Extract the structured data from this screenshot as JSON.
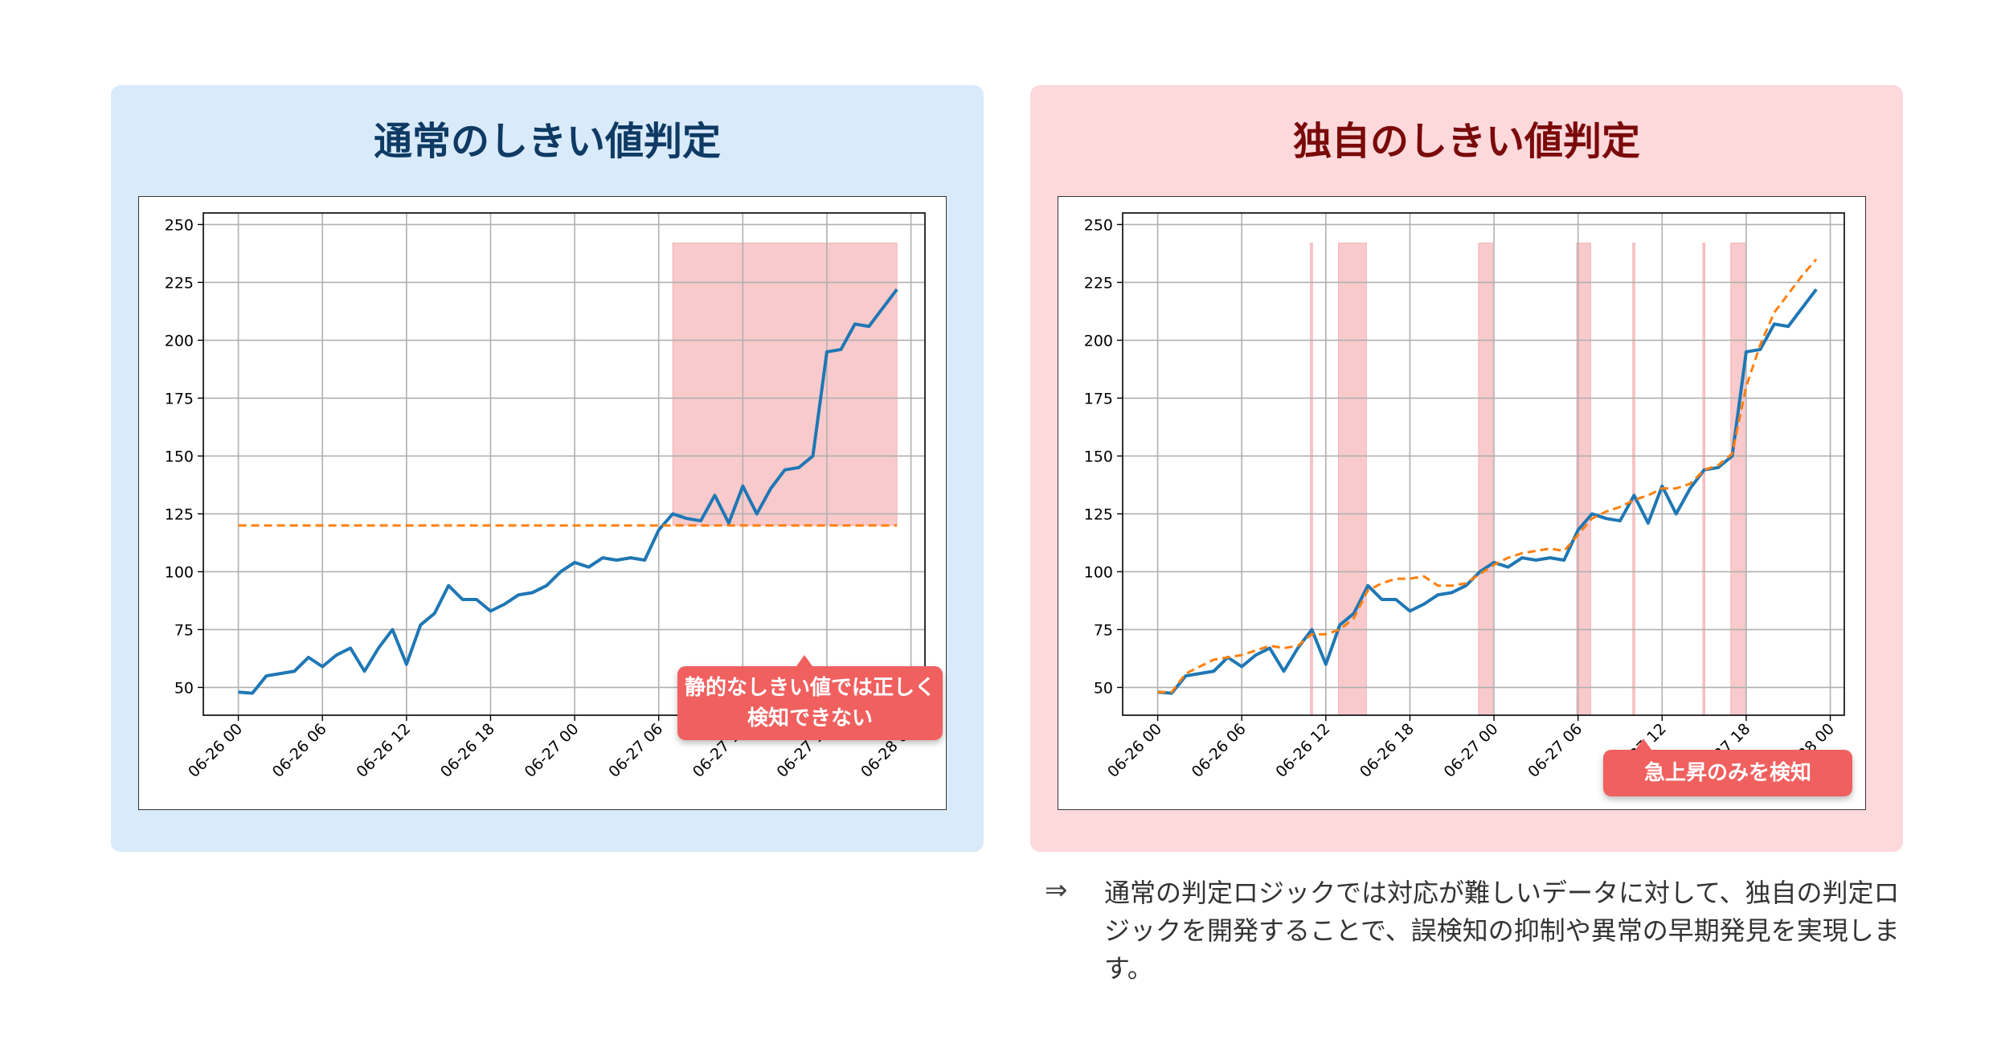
{
  "left_panel": {
    "title": "通常のしきい値判定",
    "callout": "静的なしきい値では正しく検知できない"
  },
  "right_panel": {
    "title": "独自のしきい値判定",
    "callout": "急上昇のみを検知"
  },
  "conclusion": {
    "arrow": "⇒",
    "text": "通常の判定ロジックでは対応が難しいデータに対して、独自の判定ロジックを開発することで、誤検知の抑制や異常の早期発見を実現します。"
  },
  "colors": {
    "series": "#1f77b4",
    "threshold": "#ff7f0e",
    "highlight": "#f4a6aa",
    "callout": "#f0605f"
  },
  "chart_data": [
    {
      "type": "line",
      "x_hours": [
        0,
        1,
        2,
        3,
        4,
        5,
        6,
        7,
        8,
        9,
        10,
        11,
        12,
        13,
        14,
        15,
        16,
        17,
        18,
        19,
        20,
        21,
        22,
        23,
        24,
        25,
        26,
        27,
        28,
        29,
        30,
        31,
        32,
        33,
        34,
        35,
        36,
        37,
        38,
        39,
        40,
        41,
        42,
        43,
        44,
        45,
        46,
        47
      ],
      "xticks": [
        "06-26 00",
        "06-26 06",
        "06-26 12",
        "06-26 18",
        "06-27 00",
        "06-27 06",
        "06-27 12",
        "06-27 18",
        "06-28 00"
      ],
      "yticks": [
        50,
        75,
        100,
        125,
        150,
        175,
        200,
        225,
        250
      ],
      "ylim": [
        38,
        255
      ],
      "xlim": [
        -2.5,
        49
      ],
      "grid": true,
      "series": [
        {
          "values": [
            48,
            47.5,
            55,
            56,
            57,
            63,
            59,
            64,
            67,
            57,
            67,
            75,
            60,
            77,
            82,
            94,
            88,
            88,
            83,
            86,
            90,
            91,
            94,
            100,
            104,
            102,
            106,
            105,
            106,
            105,
            118,
            125,
            123,
            122,
            133,
            121,
            137,
            125,
            136,
            144,
            145,
            150,
            195,
            196,
            207,
            206,
            214,
            222
          ]
        },
        {
          "threshold": 120,
          "from": 0,
          "to": 47
        }
      ],
      "highlight_spans": [
        [
          31,
          47
        ]
      ]
    },
    {
      "type": "line",
      "x_hours": [
        0,
        1,
        2,
        3,
        4,
        5,
        6,
        7,
        8,
        9,
        10,
        11,
        12,
        13,
        14,
        15,
        16,
        17,
        18,
        19,
        20,
        21,
        22,
        23,
        24,
        25,
        26,
        27,
        28,
        29,
        30,
        31,
        32,
        33,
        34,
        35,
        36,
        37,
        38,
        39,
        40,
        41,
        42,
        43,
        44,
        45,
        46,
        47
      ],
      "xticks": [
        "06-26 00",
        "06-26 06",
        "06-26 12",
        "06-26 18",
        "06-27 00",
        "06-27 06",
        "06-27 12",
        "06-27 18",
        "06-28 00"
      ],
      "yticks": [
        50,
        75,
        100,
        125,
        150,
        175,
        200,
        225,
        250
      ],
      "ylim": [
        38,
        255
      ],
      "xlim": [
        -2.5,
        49
      ],
      "grid": true,
      "series": [
        {
          "values": [
            48,
            47.5,
            55,
            56,
            57,
            63,
            59,
            64,
            67,
            57,
            67,
            75,
            60,
            77,
            82,
            94,
            88,
            88,
            83,
            86,
            90,
            91,
            94,
            100,
            104,
            102,
            106,
            105,
            106,
            105,
            118,
            125,
            123,
            122,
            133,
            121,
            137,
            125,
            136,
            144,
            145,
            150,
            195,
            196,
            207,
            206,
            214,
            222
          ]
        },
        {
          "values": [
            48,
            48,
            56,
            59,
            62,
            63,
            64,
            66,
            68,
            67,
            68,
            73,
            73,
            75,
            80,
            92,
            95,
            97,
            97,
            98,
            94,
            94,
            95,
            99,
            103,
            106,
            108,
            109,
            110,
            109,
            116,
            123,
            126,
            128,
            131,
            133,
            136,
            136,
            138,
            144,
            146,
            151,
            180,
            198,
            212,
            220,
            228,
            235
          ]
        }
      ],
      "highlight_spans": [
        [
          10.9,
          11.05
        ],
        [
          12.9,
          14.9
        ],
        [
          22.9,
          23.9
        ],
        [
          29.9,
          30.9
        ],
        [
          33.9,
          34.05
        ],
        [
          38.9,
          39.05
        ],
        [
          40.9,
          41.9
        ]
      ]
    }
  ]
}
